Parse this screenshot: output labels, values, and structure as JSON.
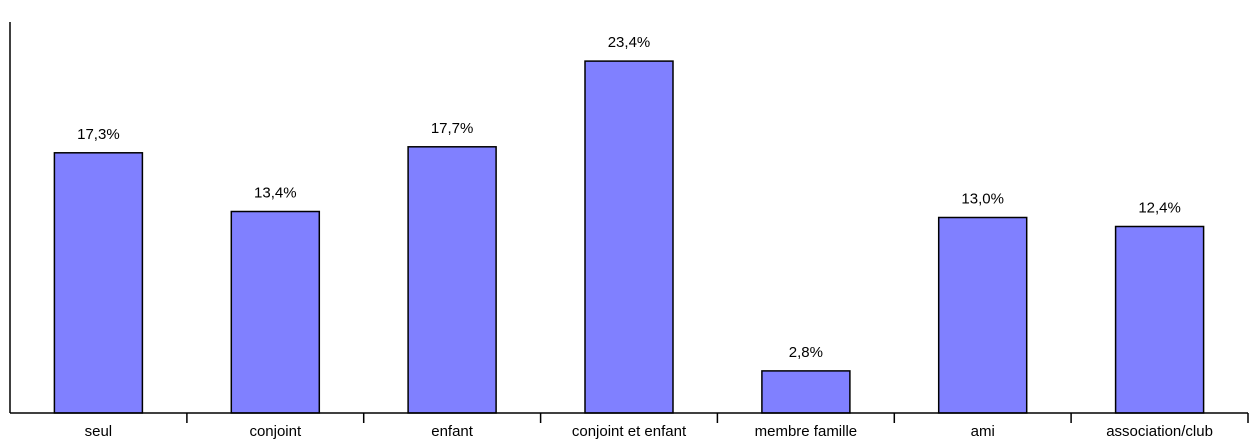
{
  "chart_data": {
    "type": "bar",
    "categories": [
      "seul",
      "conjoint",
      "enfant",
      "conjoint et enfant",
      "membre famille",
      "ami",
      "association/club"
    ],
    "values": [
      17.3,
      13.4,
      17.7,
      23.4,
      2.8,
      13.0,
      12.4
    ],
    "data_labels": [
      "17,3%",
      "13,4%",
      "17,7%",
      "23,4%",
      "2,8%",
      "13,0%",
      "12,4%"
    ],
    "ylim": [
      0,
      26
    ],
    "grid": false,
    "bar_color": "#8080ff",
    "title": "",
    "xlabel": "",
    "ylabel": ""
  }
}
